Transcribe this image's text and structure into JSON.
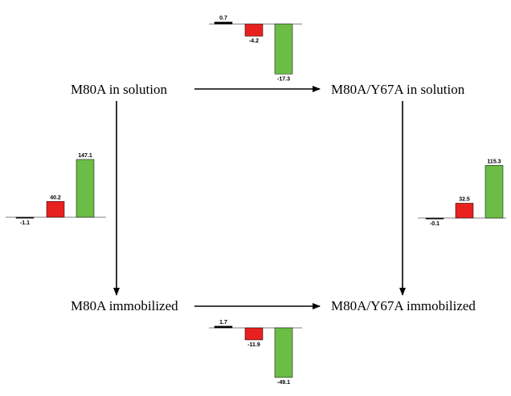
{
  "nodes": {
    "top_left": "M80A in solution",
    "top_right": "M80A/Y67A in solution",
    "bottom_left": "M80A immobilized",
    "bottom_right": "M80A/Y67A immobilized"
  },
  "colors": {
    "black": "#000000",
    "red": "#e8211f",
    "green": "#6bbd45"
  },
  "chart_data": [
    {
      "type": "bar",
      "location": "top",
      "values": [
        0.7,
        -4.2,
        -17.3
      ],
      "labels": [
        "0.7",
        "-4.2",
        "-17.3"
      ]
    },
    {
      "type": "bar",
      "location": "left",
      "values": [
        -1.1,
        40.2,
        147.1
      ],
      "labels": [
        "-1.1",
        "40.2",
        "147.1"
      ]
    },
    {
      "type": "bar",
      "location": "right",
      "values": [
        -0.1,
        32.5,
        115.3
      ],
      "labels": [
        "-0.1",
        "32.5",
        "115.3"
      ]
    },
    {
      "type": "bar",
      "location": "bottom",
      "values": [
        1.7,
        -11.9,
        -49.1
      ],
      "labels": [
        "1.7",
        "-11.9",
        "-49.1"
      ]
    }
  ]
}
